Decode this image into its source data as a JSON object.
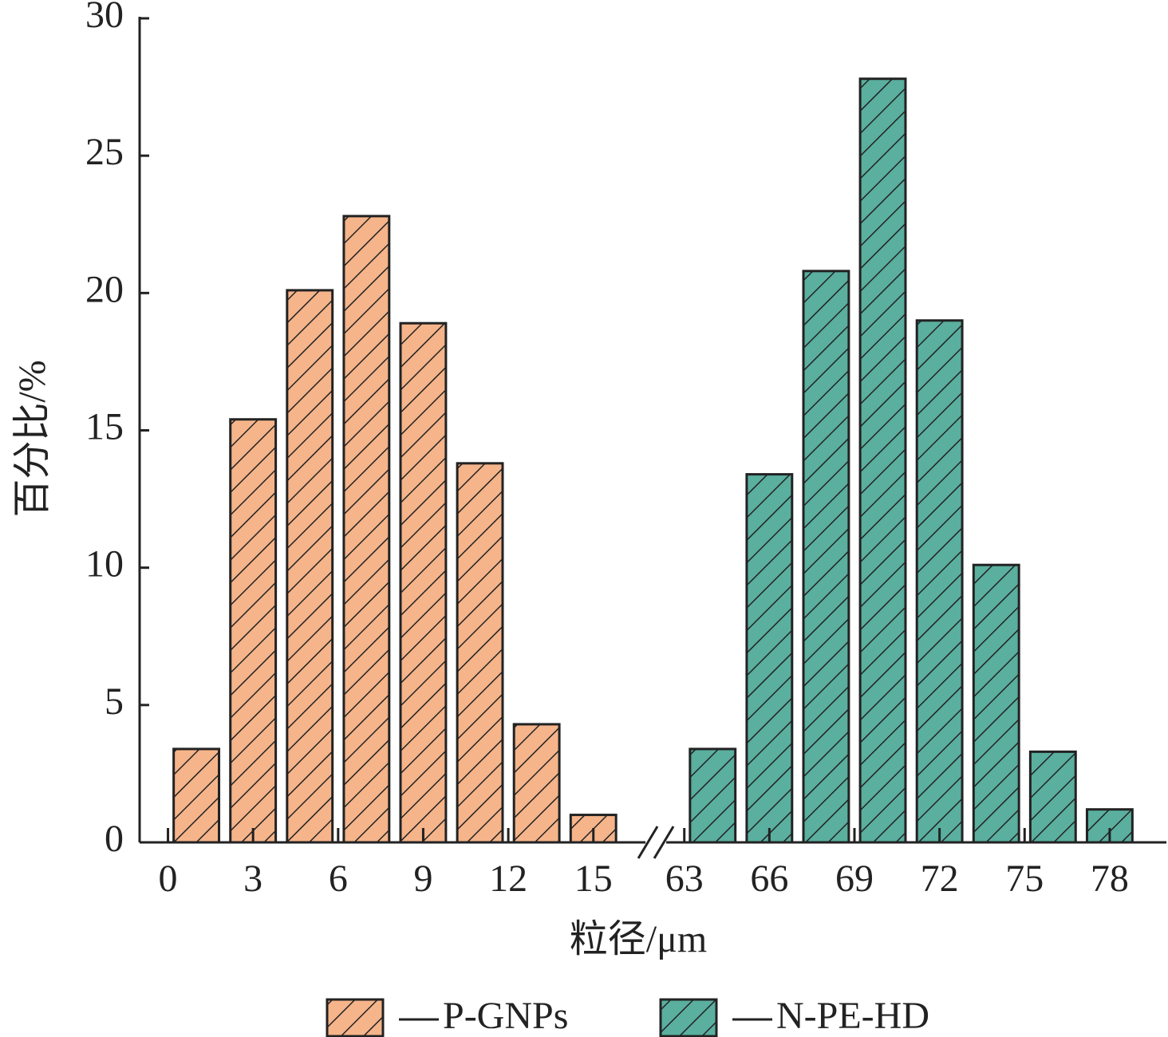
{
  "chart_data": {
    "type": "bar",
    "x_label": "粒径/μm",
    "y_label": "百分比/%",
    "xlim": [
      [
        -1,
        16.5
      ],
      [
        62.7,
        80
      ]
    ],
    "xticks": [
      0,
      3,
      6,
      9,
      12,
      15,
      63,
      66,
      69,
      72,
      75,
      78
    ],
    "ylim": [
      0,
      30
    ],
    "yticks": [
      0,
      5,
      10,
      15,
      20,
      25,
      30
    ],
    "hatch": true,
    "legend": "bottom",
    "series": [
      {
        "name": "P-GNPs",
        "color": "#f5b48a",
        "x": [
          1,
          3,
          5,
          7,
          9,
          11,
          13,
          15
        ],
        "values": [
          3.4,
          15.4,
          20.1,
          22.8,
          18.9,
          13.8,
          4.3,
          1.0
        ]
      },
      {
        "name": "N-PE-HD",
        "color": "#5aaf9f",
        "x": [
          64,
          66,
          68,
          70,
          72,
          74,
          76,
          78
        ],
        "values": [
          3.4,
          13.4,
          20.8,
          27.8,
          19.0,
          10.1,
          3.3,
          1.2
        ]
      }
    ]
  }
}
